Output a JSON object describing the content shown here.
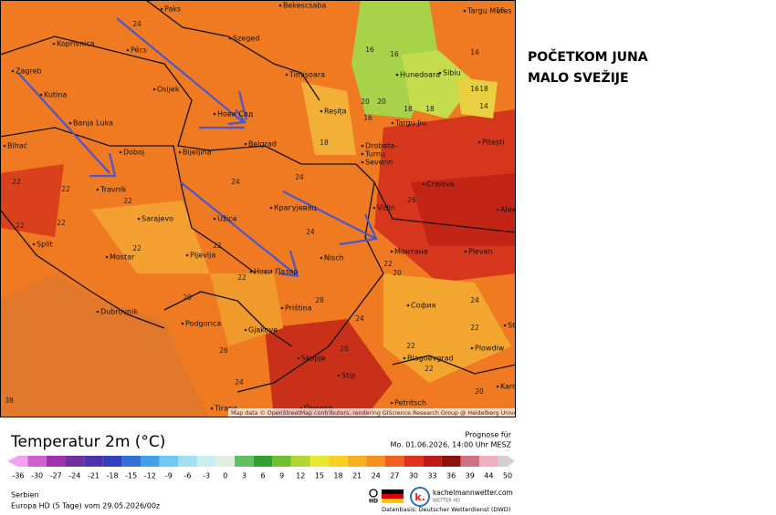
{
  "heading": {
    "lines": [
      "POČETKOM JUNA",
      "MALO SVEŽIJE"
    ]
  },
  "map": {
    "places": [
      "Paks",
      "Bekescsaba",
      "Targu Mures",
      "Koprivnica",
      "Pécs",
      "Szeged",
      "Zagreb",
      "Timișoara",
      "Hunedoara",
      "Sibiu",
      "Kutina",
      "Osijek",
      "Нови Сад",
      "Reșița",
      "Targu Jiu",
      "Banja Luka",
      "Doboj",
      "Bijeljina",
      "Belgrad",
      "Drobeta-",
      "Turnu",
      "Severin",
      "Pitești",
      "Bihać",
      "Travnik",
      "Craiova",
      "Крагујевац",
      "Vidin",
      "Alexand",
      "Sarajevo",
      "Užice",
      "Split",
      "Монтана",
      "Pleven",
      "Mostar",
      "Pljevlja",
      "Nisch",
      "Нови Пазар",
      "София",
      "Dubrovnik",
      "Priština",
      "Podgorica",
      "Star",
      "Gjakove",
      "Plowdiw",
      "Skopje",
      "Blagoevgrad",
      "Stip",
      "Kardsch",
      "Petritsch",
      "Tirane",
      "Прилеп"
    ],
    "temperatures": [
      24,
      16,
      16,
      20,
      16,
      20,
      18,
      18,
      16,
      18,
      14,
      14,
      16,
      18,
      24,
      24,
      26,
      22,
      22,
      22,
      22,
      22,
      22,
      22,
      24,
      20,
      22,
      20,
      28,
      24,
      22,
      24,
      22,
      22,
      24,
      20,
      26,
      22,
      26,
      38
    ],
    "attribution": "Map data © OpenStreetMap contributors, rendering GIScience Research Group @ Heidelberg University"
  },
  "legend": {
    "title": "Temperatur 2m (°C)",
    "ticks": [
      -36,
      -30,
      -27,
      -24,
      -21,
      -18,
      -15,
      -12,
      -9,
      -6,
      -3,
      0,
      3,
      6,
      9,
      12,
      15,
      18,
      21,
      24,
      27,
      30,
      33,
      36,
      39,
      44,
      50
    ]
  },
  "forecast": {
    "label": "Prognose für",
    "time": "Mo. 01.06.2026, 14:00 Uhr MESZ"
  },
  "footer": {
    "region": "Serbien",
    "model": "Europa HD (5 Tage) vom 29.05.2026/00z",
    "hd": "HD",
    "site": "kachelmannwetter.com",
    "site_sub": "WETTER HD",
    "source": "Datenbasis: Deutscher Wetterdienst (DWD)"
  }
}
